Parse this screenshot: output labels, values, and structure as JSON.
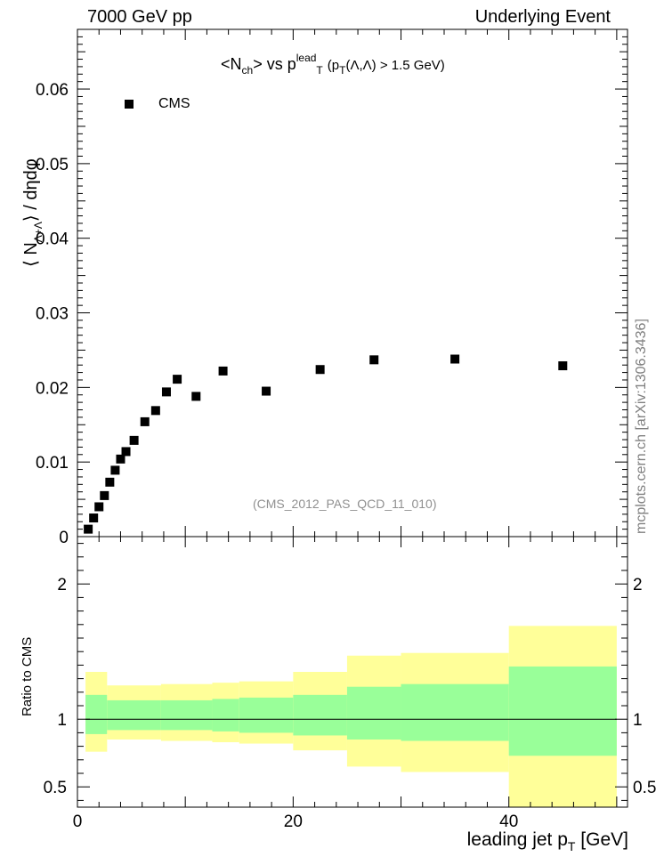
{
  "header": {
    "left": "7000 GeV pp",
    "right": "Underlying Event"
  },
  "title": {
    "part1": "<N",
    "part1_sub": "ch",
    "part2": "> vs p",
    "part2_sup": "lead",
    "part2_sub": "T",
    "part3a": "(p",
    "part3_sub": "T",
    "part3b": "(Λ,Λ) > 1.5 GeV)"
  },
  "watermark": "mcplots.cern.ch [arXiv:1306.3436]",
  "analysis_id": "(CMS_2012_PAS_QCD_11_010)",
  "ylabel_top": {
    "pre": "⟨ N",
    "sub": "Λ+Λ",
    "post": "⟩ / dηdφ"
  },
  "ylabel_bottom": "Ratio to CMS",
  "xlabel": {
    "main": "leading jet p",
    "sub": "T",
    "unit": " [GeV]"
  },
  "colors": {
    "band_inner": "#99ff99",
    "band_outer": "#ffff99",
    "marker": "#000000"
  },
  "chart_data": [
    {
      "type": "scatter",
      "title": "<Nch> vs pT lead (pT(Λ,Λ) > 1.5 GeV)",
      "ylabel": "⟨ N Λ+Λ ⟩ / dηdφ",
      "xlim": [
        0,
        51
      ],
      "ylim": [
        0,
        0.068
      ],
      "y_ticks": [
        0,
        0.01,
        0.02,
        0.03,
        0.04,
        0.05,
        0.06
      ],
      "y_tick_labels": [
        "0",
        "0.01",
        "0.02",
        "0.03",
        "0.04",
        "0.05",
        "0.06"
      ],
      "legend": {
        "position": "top-left",
        "entries": [
          "CMS"
        ]
      },
      "series": [
        {
          "name": "CMS",
          "x": [
            1.0,
            1.5,
            2.0,
            2.5,
            3.0,
            3.5,
            4.0,
            4.5,
            5.25,
            6.25,
            7.25,
            8.25,
            9.25,
            11.0,
            13.5,
            17.5,
            22.5,
            27.5,
            35.0,
            45.0
          ],
          "y": [
            0.001,
            0.0025,
            0.004,
            0.0055,
            0.0073,
            0.0089,
            0.0104,
            0.0114,
            0.0129,
            0.0154,
            0.0169,
            0.0194,
            0.0211,
            0.0188,
            0.0222,
            0.0195,
            0.0224,
            0.0237,
            0.0238,
            0.0229
          ]
        }
      ]
    },
    {
      "type": "area",
      "ylabel": "Ratio to CMS",
      "xlabel": "leading jet pT [GeV]",
      "xlim": [
        0,
        51
      ],
      "ylim": [
        0.35,
        2.35
      ],
      "x_ticks": [
        0,
        20,
        40
      ],
      "y_ticks": [
        0.5,
        1,
        2
      ],
      "reference_line": 1.0,
      "bins": [
        {
          "x": [
            0.75,
            2.75
          ],
          "inner": [
            0.89,
            1.18
          ],
          "outer": [
            0.76,
            1.35
          ]
        },
        {
          "x": [
            2.75,
            7.75
          ],
          "inner": [
            0.92,
            1.14
          ],
          "outer": [
            0.85,
            1.25
          ]
        },
        {
          "x": [
            7.75,
            12.5
          ],
          "inner": [
            0.92,
            1.14
          ],
          "outer": [
            0.84,
            1.26
          ]
        },
        {
          "x": [
            12.5,
            15.0
          ],
          "inner": [
            0.91,
            1.15
          ],
          "outer": [
            0.83,
            1.27
          ]
        },
        {
          "x": [
            15.0,
            20.0
          ],
          "inner": [
            0.9,
            1.16
          ],
          "outer": [
            0.82,
            1.28
          ]
        },
        {
          "x": [
            20.0,
            25.0
          ],
          "inner": [
            0.88,
            1.18
          ],
          "outer": [
            0.77,
            1.35
          ]
        },
        {
          "x": [
            25.0,
            30.0
          ],
          "inner": [
            0.85,
            1.24
          ],
          "outer": [
            0.65,
            1.47
          ]
        },
        {
          "x": [
            30.0,
            40.0
          ],
          "inner": [
            0.84,
            1.26
          ],
          "outer": [
            0.61,
            1.49
          ]
        },
        {
          "x": [
            40.0,
            50.0
          ],
          "inner": [
            0.73,
            1.39
          ],
          "outer": [
            0.35,
            1.69
          ]
        }
      ]
    }
  ]
}
